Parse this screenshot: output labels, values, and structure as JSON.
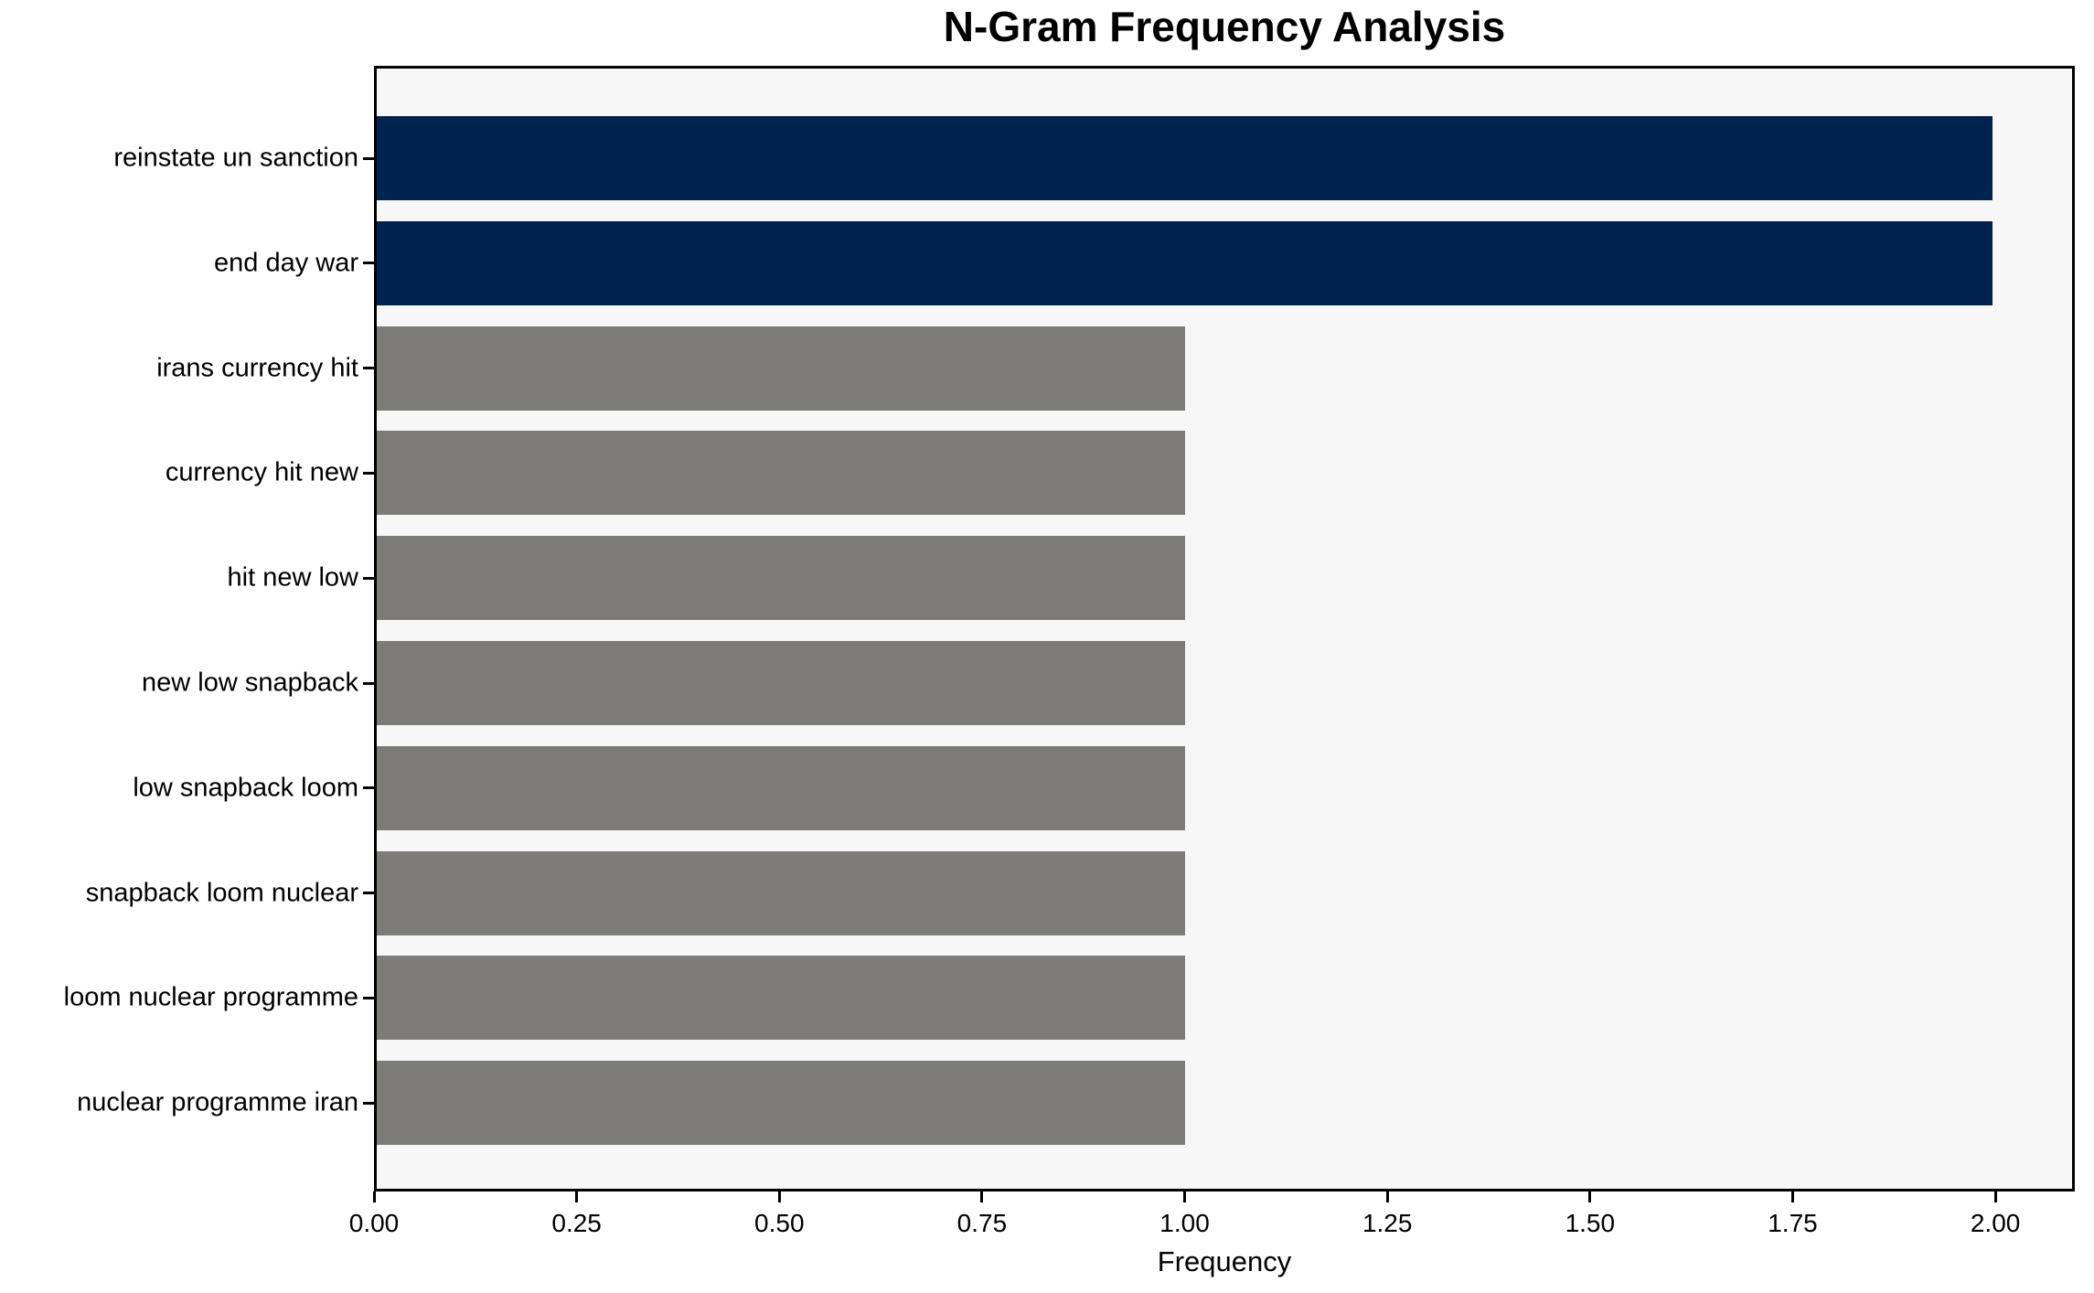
{
  "chart": {
    "title": "N-Gram Frequency Analysis",
    "xlabel": "Frequency"
  },
  "chart_data": {
    "type": "bar",
    "orientation": "horizontal",
    "title": "N-Gram Frequency Analysis",
    "xlabel": "Frequency",
    "ylabel": "",
    "categories": [
      "reinstate un sanction",
      "end day war",
      "irans currency hit",
      "currency hit new",
      "hit new low",
      "new low snapback",
      "low snapback loom",
      "snapback loom nuclear",
      "loom nuclear programme",
      "nuclear programme iran"
    ],
    "values": [
      2,
      2,
      1,
      1,
      1,
      1,
      1,
      1,
      1,
      1
    ],
    "bar_colors": [
      "#00224e",
      "#00224e",
      "#7c7b78",
      "#7c7b78",
      "#7c7b78",
      "#7c7b78",
      "#7c7b78",
      "#7c7b78",
      "#7c7b78",
      "#7c7b78"
    ],
    "xlim": [
      0,
      2.098
    ],
    "xticks": [
      "0.00",
      "0.25",
      "0.50",
      "0.75",
      "1.00",
      "1.25",
      "1.50",
      "1.75",
      "2.00"
    ],
    "grid": false,
    "legend": null,
    "colors": {
      "high_frequency_bar": "#00224e",
      "low_frequency_bar": "#7c7b78",
      "plot_background": "#f7f7f7",
      "figure_background": "#ffffff",
      "axis": "#000000",
      "text": "#000000"
    }
  }
}
